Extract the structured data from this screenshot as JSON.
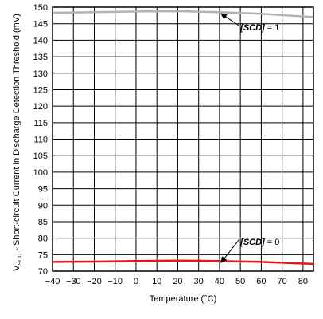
{
  "chart_data": {
    "type": "line",
    "title": "",
    "xlabel": "Temperature (°C)",
    "ylabel_main": "V",
    "ylabel_sub": "SCD",
    "ylabel_rest": " - Short-circuit Current in Discharge Detection Threshold (mV)",
    "xlim": [
      -40,
      85
    ],
    "ylim": [
      70,
      150
    ],
    "x_ticks": [
      -40,
      -30,
      -20,
      -10,
      0,
      10,
      20,
      30,
      40,
      50,
      60,
      70,
      80
    ],
    "x_tick_labels": [
      "−40",
      "−30",
      "−20",
      "−10",
      "0",
      "10",
      "20",
      "30",
      "40",
      "50",
      "60",
      "70",
      "80"
    ],
    "y_ticks": [
      70,
      75,
      80,
      85,
      90,
      95,
      100,
      105,
      110,
      115,
      120,
      125,
      130,
      135,
      140,
      145,
      150
    ],
    "y_tick_labels": [
      "70",
      "75",
      "80",
      "85",
      "90",
      "95",
      "100",
      "105",
      "110",
      "115",
      "120",
      "125",
      "130",
      "135",
      "140",
      "145",
      "150"
    ],
    "grid": true,
    "series": [
      {
        "name": "[SCD] = 1",
        "color": "#b3b3b3",
        "x": [
          -40,
          -20,
          0,
          20,
          40,
          60,
          85
        ],
        "y": [
          148.3,
          148.5,
          148.7,
          148.8,
          148.5,
          148.0,
          147.0
        ]
      },
      {
        "name": "[SCD] = 0",
        "color": "#e8161b",
        "x": [
          -40,
          -20,
          0,
          20,
          40,
          60,
          85
        ],
        "y": [
          72.8,
          72.9,
          73.1,
          73.2,
          73.1,
          72.8,
          72.2
        ]
      }
    ],
    "annotations": [
      {
        "bold": "[SCD]",
        "rest": " = 1",
        "arrow_to": [
          40,
          148.5
        ],
        "text_at": [
          50,
          143
        ]
      },
      {
        "bold": "[SCD]",
        "rest": " = 0",
        "arrow_to": [
          40,
          73.1
        ],
        "text_at": [
          50,
          78
        ]
      }
    ]
  }
}
